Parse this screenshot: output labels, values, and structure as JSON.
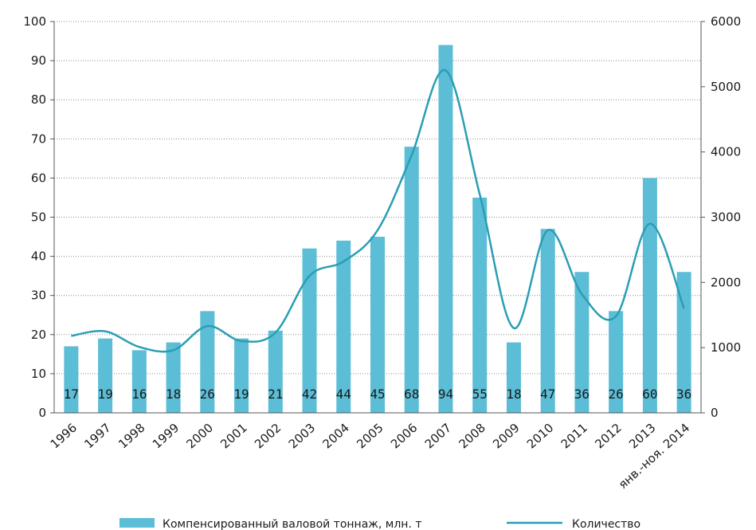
{
  "chart_data": {
    "type": "bar+line",
    "categories": [
      "1996",
      "1997",
      "1998",
      "1999",
      "2000",
      "2001",
      "2002",
      "2003",
      "2004",
      "2005",
      "2006",
      "2007",
      "2008",
      "2009",
      "2010",
      "2011",
      "2012",
      "2013",
      "янв.-ноя. 2014"
    ],
    "series": [
      {
        "name": "Компенсированный валовой тоннаж, млн. т",
        "type": "bar",
        "axis": "left",
        "values": [
          17,
          19,
          16,
          18,
          26,
          19,
          21,
          42,
          44,
          45,
          68,
          94,
          55,
          18,
          47,
          36,
          26,
          60,
          36
        ],
        "color": "#5bbdd6"
      },
      {
        "name": "Количество",
        "type": "line",
        "axis": "right",
        "values": [
          1180,
          1250,
          1010,
          960,
          1330,
          1100,
          1230,
          2100,
          2320,
          2800,
          3950,
          5250,
          3350,
          1300,
          2800,
          1820,
          1480,
          2900,
          1600
        ],
        "color": "#2a9eb4"
      }
    ],
    "left_axis": {
      "min": 0,
      "max": 100,
      "ticks": [
        0,
        10,
        20,
        30,
        40,
        50,
        60,
        70,
        80,
        90,
        100
      ]
    },
    "right_axis": {
      "min": 0,
      "max": 6000,
      "ticks": [
        0,
        1000,
        2000,
        3000,
        4000,
        5000,
        6000
      ]
    },
    "grid": true,
    "legend_position": "bottom",
    "data_labels": [
      "17",
      "19",
      "16",
      "18",
      "26",
      "19",
      "21",
      "42",
      "44",
      "45",
      "68",
      "94",
      "55",
      "18",
      "47",
      "36",
      "26",
      "60",
      "36"
    ]
  }
}
